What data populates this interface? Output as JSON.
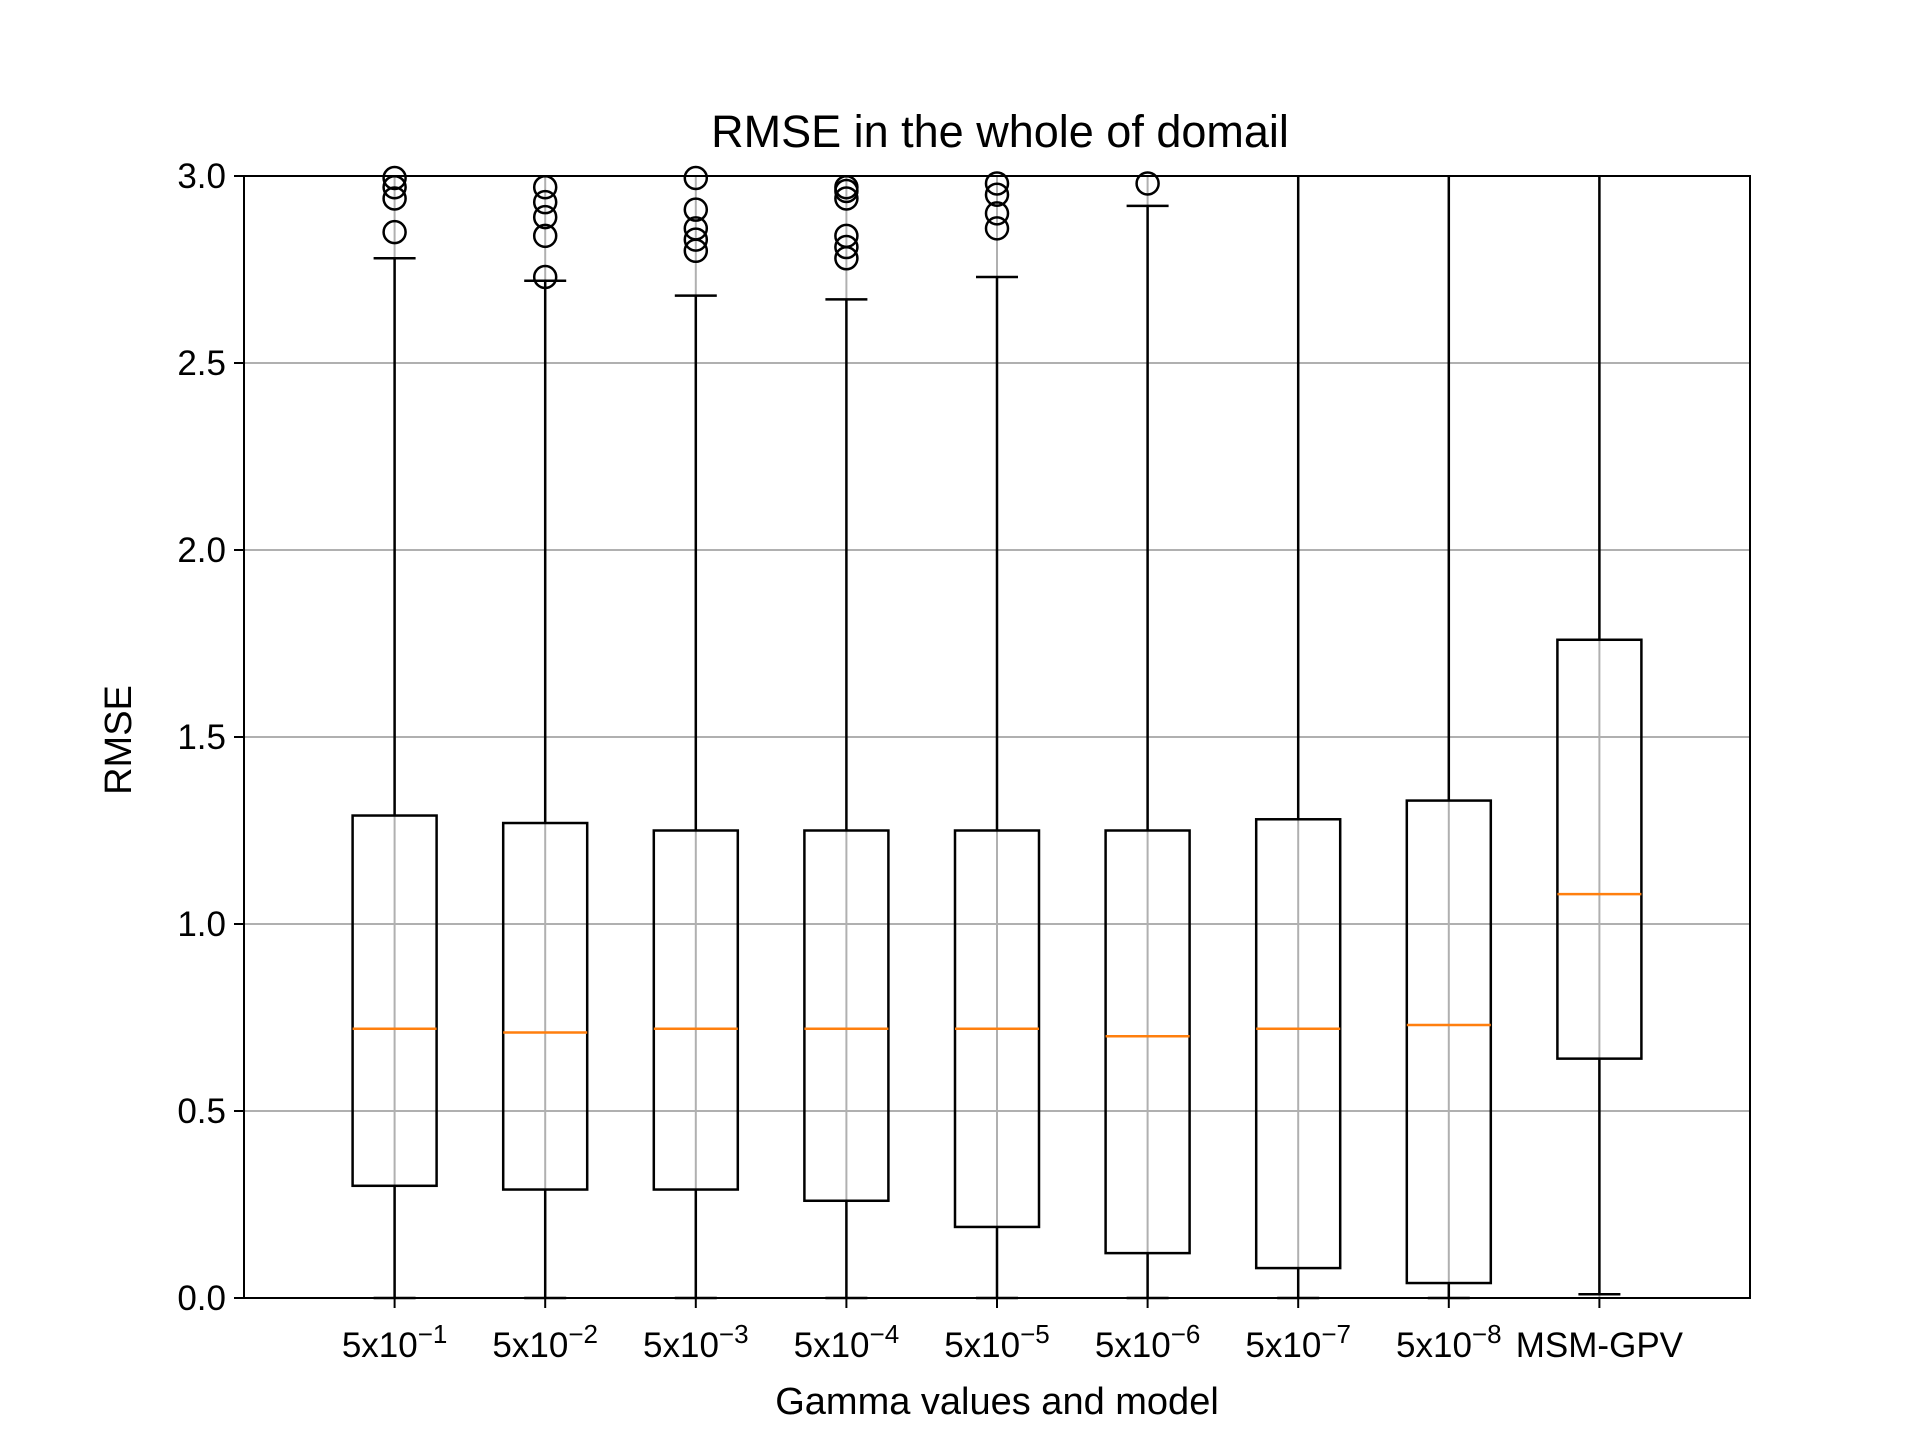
{
  "chart_data": {
    "type": "box",
    "title": "RMSE in the whole of domail",
    "xlabel": "Gamma values and model",
    "ylabel": "RMSE",
    "ylim": [
      0,
      3.0
    ],
    "yticks": [
      "0.0",
      "0.5",
      "1.0",
      "1.5",
      "2.0",
      "2.5",
      "3.0"
    ],
    "grid": true,
    "median_color": "#ff7f0e",
    "box_color": "#000000",
    "grid_color": "#b0b0b0",
    "categories": [
      {
        "base": "5x10",
        "exp": "−1"
      },
      {
        "base": "5x10",
        "exp": "−2"
      },
      {
        "base": "5x10",
        "exp": "−3"
      },
      {
        "base": "5x10",
        "exp": "−4"
      },
      {
        "base": "5x10",
        "exp": "−5"
      },
      {
        "base": "5x10",
        "exp": "−6"
      },
      {
        "base": "5x10",
        "exp": "−7"
      },
      {
        "base": "5x10",
        "exp": "−8"
      },
      {
        "base": "MSM-GPV",
        "exp": ""
      }
    ],
    "boxes": [
      {
        "whisker_low": 0.0,
        "q1": 0.3,
        "median": 0.72,
        "q3": 1.29,
        "whisker_high": 2.78,
        "outliers": [
          2.85,
          2.94,
          2.97,
          3.0
        ]
      },
      {
        "whisker_low": 0.0,
        "q1": 0.29,
        "median": 0.71,
        "q3": 1.27,
        "whisker_high": 2.72,
        "outliers": [
          2.73,
          2.84,
          2.89,
          2.93,
          2.97
        ]
      },
      {
        "whisker_low": 0.0,
        "q1": 0.29,
        "median": 0.72,
        "q3": 1.25,
        "whisker_high": 2.68,
        "outliers": [
          2.8,
          2.83,
          2.86,
          2.91,
          3.0
        ]
      },
      {
        "whisker_low": 0.0,
        "q1": 0.26,
        "median": 0.72,
        "q3": 1.25,
        "whisker_high": 2.67,
        "outliers": [
          2.78,
          2.81,
          2.84,
          2.94,
          2.96,
          2.97
        ]
      },
      {
        "whisker_low": 0.0,
        "q1": 0.19,
        "median": 0.72,
        "q3": 1.25,
        "whisker_high": 2.73,
        "outliers": [
          2.86,
          2.9,
          2.95,
          2.98
        ]
      },
      {
        "whisker_low": 0.0,
        "q1": 0.12,
        "median": 0.7,
        "q3": 1.25,
        "whisker_high": 2.92,
        "outliers": [
          2.98
        ]
      },
      {
        "whisker_low": 0.0,
        "q1": 0.08,
        "median": 0.72,
        "q3": 1.28,
        "whisker_high": 3.0,
        "outliers": []
      },
      {
        "whisker_low": 0.0,
        "q1": 0.04,
        "median": 0.73,
        "q3": 1.33,
        "whisker_high": 3.0,
        "outliers": []
      },
      {
        "whisker_low": 0.01,
        "q1": 0.64,
        "median": 1.08,
        "q3": 1.76,
        "whisker_high": 3.0,
        "outliers": []
      }
    ]
  }
}
